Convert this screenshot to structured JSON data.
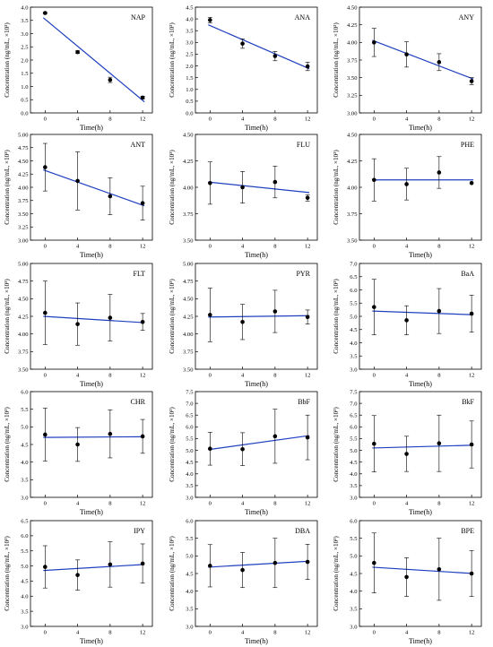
{
  "chart_data": [
    {
      "type": "scatter",
      "label": "NAP",
      "xlabel": "Time(h)",
      "ylabel": "Concentration (ng/mL, ×10³)",
      "x": [
        0,
        4,
        8,
        12
      ],
      "values": [
        3.78,
        2.3,
        1.25,
        0.58
      ],
      "errors": [
        0.03,
        0.05,
        0.1,
        0.05
      ],
      "fit": [
        3.6,
        0.42
      ],
      "ylim": [
        0,
        4
      ],
      "yticks": [
        "0.0",
        "0.5",
        "1.0",
        "1.5",
        "2.0",
        "2.5",
        "3.0",
        "3.5",
        "4.0"
      ],
      "xticks": [
        "0",
        "4",
        "8",
        "12"
      ]
    },
    {
      "type": "scatter",
      "label": "ANA",
      "xlabel": "Time(h)",
      "ylabel": "Concentration (ng/mL, ×10³)",
      "x": [
        0,
        4,
        8,
        12
      ],
      "values": [
        3.95,
        2.95,
        2.42,
        1.98
      ],
      "errors": [
        0.12,
        0.2,
        0.2,
        0.18
      ],
      "fit": [
        3.75,
        1.88
      ],
      "ylim": [
        0,
        4.5
      ],
      "yticks": [
        "0.0",
        "0.5",
        "1.0",
        "1.5",
        "2.0",
        "2.5",
        "3.0",
        "3.5",
        "4.0",
        "4.5"
      ],
      "xticks": [
        "0",
        "4",
        "8",
        "12"
      ]
    },
    {
      "type": "scatter",
      "label": "ANY",
      "xlabel": "Time(h)",
      "ylabel": "Concentration (ng/mL, ×10³)",
      "x": [
        0,
        4,
        8,
        12
      ],
      "values": [
        4.0,
        3.83,
        3.72,
        3.45
      ],
      "errors": [
        0.2,
        0.18,
        0.12,
        0.05
      ],
      "fit": [
        4.03,
        3.48
      ],
      "ylim": [
        3,
        4.5
      ],
      "yticks": [
        "3.00",
        "3.25",
        "3.50",
        "3.75",
        "4.00",
        "4.25",
        "4.50"
      ],
      "xticks": [
        "0",
        "4",
        "8",
        "12"
      ]
    },
    {
      "type": "scatter",
      "label": "ANT",
      "xlabel": "Time(h)",
      "ylabel": "Concentration (ng/mL, ×10³)",
      "x": [
        0,
        4,
        8,
        12
      ],
      "values": [
        4.38,
        4.12,
        3.83,
        3.7
      ],
      "errors": [
        0.45,
        0.55,
        0.35,
        0.32
      ],
      "fit": [
        4.33,
        3.65
      ],
      "ylim": [
        3,
        5
      ],
      "yticks": [
        "3.00",
        "3.25",
        "3.50",
        "3.75",
        "4.00",
        "4.25",
        "4.50",
        "4.75",
        "5.00"
      ],
      "xticks": [
        "0",
        "4",
        "8",
        "12"
      ]
    },
    {
      "type": "scatter",
      "label": "FLU",
      "xlabel": "Time(h)",
      "ylabel": "Concentration (ng/mL, ×10³)",
      "x": [
        0,
        4,
        8,
        12
      ],
      "values": [
        4.04,
        4.0,
        4.05,
        3.9
      ],
      "errors": [
        0.2,
        0.15,
        0.15,
        0.03
      ],
      "fit": [
        4.05,
        3.95
      ],
      "ylim": [
        3.5,
        4.5
      ],
      "yticks": [
        "3.50",
        "3.75",
        "4.00",
        "4.25",
        "4.50"
      ],
      "xticks": [
        "0",
        "4",
        "8",
        "12"
      ]
    },
    {
      "type": "scatter",
      "label": "PHE",
      "xlabel": "Time(h)",
      "ylabel": "Concentration (ng/mL, ×10³)",
      "x": [
        0,
        4,
        8,
        12
      ],
      "values": [
        4.07,
        4.03,
        4.14,
        4.04
      ],
      "errors": [
        0.2,
        0.15,
        0.15,
        0.0
      ],
      "fit": [
        4.07,
        4.07
      ],
      "ylim": [
        3.5,
        4.5
      ],
      "yticks": [
        "3.50",
        "3.75",
        "4.00",
        "4.25",
        "4.50"
      ],
      "xticks": [
        "0",
        "4",
        "8",
        "12"
      ]
    },
    {
      "type": "scatter",
      "label": "FLT",
      "xlabel": "Time(h)",
      "ylabel": "Concentration (ng/mL, ×10³)",
      "x": [
        0,
        4,
        8,
        12
      ],
      "values": [
        4.3,
        4.14,
        4.23,
        4.17
      ],
      "errors": [
        0.45,
        0.3,
        0.33,
        0.12
      ],
      "fit": [
        4.25,
        4.16
      ],
      "ylim": [
        3.5,
        5
      ],
      "yticks": [
        "3.50",
        "3.75",
        "4.00",
        "4.25",
        "4.50",
        "4.75",
        "5.00"
      ],
      "xticks": [
        "0",
        "4",
        "8",
        "12"
      ]
    },
    {
      "type": "scatter",
      "label": "PYR",
      "xlabel": "Time(h)",
      "ylabel": "Concentration (ng/mL, ×10³)",
      "x": [
        0,
        4,
        8,
        12
      ],
      "values": [
        4.27,
        4.17,
        4.32,
        4.24
      ],
      "errors": [
        0.38,
        0.25,
        0.3,
        0.1
      ],
      "fit": [
        4.24,
        4.26
      ],
      "ylim": [
        3.5,
        5
      ],
      "yticks": [
        "3.50",
        "3.75",
        "4.00",
        "4.25",
        "4.50",
        "4.75",
        "5.00"
      ],
      "xticks": [
        "0",
        "4",
        "8",
        "12"
      ]
    },
    {
      "type": "scatter",
      "label": "BaA",
      "xlabel": "Time(h)",
      "ylabel": "Concentration (ng/mL, ×10³)",
      "x": [
        0,
        4,
        8,
        12
      ],
      "values": [
        5.35,
        4.85,
        5.2,
        5.1
      ],
      "errors": [
        1.05,
        0.55,
        0.85,
        0.7
      ],
      "fit": [
        5.2,
        5.06
      ],
      "ylim": [
        3,
        7
      ],
      "yticks": [
        "3.0",
        "3.5",
        "4.0",
        "4.5",
        "5.0",
        "5.5",
        "6.0",
        "6.5",
        "7.0"
      ],
      "xticks": [
        "0",
        "4",
        "8",
        "12"
      ]
    },
    {
      "type": "scatter",
      "label": "CHR",
      "xlabel": "Time(h)",
      "ylabel": "Concentration (ng/mL, ×10³)",
      "x": [
        0,
        4,
        8,
        12
      ],
      "values": [
        4.78,
        4.5,
        4.8,
        4.73
      ],
      "errors": [
        0.75,
        0.48,
        0.68,
        0.48
      ],
      "fit": [
        4.7,
        4.72
      ],
      "ylim": [
        3,
        6
      ],
      "yticks": [
        "3.0",
        "3.5",
        "4.0",
        "4.5",
        "5.0",
        "5.5",
        "6.0"
      ],
      "xticks": [
        "0",
        "4",
        "8",
        "12"
      ]
    },
    {
      "type": "scatter",
      "label": "BbF",
      "xlabel": "Time(h)",
      "ylabel": "Concentration (ng/mL, ×10³)",
      "x": [
        0,
        4,
        8,
        12
      ],
      "values": [
        5.07,
        5.05,
        5.6,
        5.55
      ],
      "errors": [
        0.7,
        0.7,
        1.15,
        0.95
      ],
      "fit": [
        5.03,
        5.63
      ],
      "ylim": [
        3,
        7.5
      ],
      "yticks": [
        "3.0",
        "3.5",
        "4.0",
        "4.5",
        "5.0",
        "5.5",
        "6.0",
        "6.5",
        "7.0",
        "7.5"
      ],
      "xticks": [
        "0",
        "4",
        "8",
        "12"
      ]
    },
    {
      "type": "scatter",
      "label": "BkF",
      "xlabel": "Time(h)",
      "ylabel": "Concentration (ng/mL, ×10³)",
      "x": [
        0,
        4,
        8,
        12
      ],
      "values": [
        5.28,
        4.85,
        5.3,
        5.25
      ],
      "errors": [
        1.2,
        0.75,
        1.2,
        1.0
      ],
      "fit": [
        5.1,
        5.22
      ],
      "ylim": [
        3,
        7.5
      ],
      "yticks": [
        "3.0",
        "3.5",
        "4.0",
        "4.5",
        "5.0",
        "5.5",
        "6.0",
        "6.5",
        "7.0",
        "7.5"
      ],
      "xticks": [
        "0",
        "4",
        "8",
        "12"
      ]
    },
    {
      "type": "scatter",
      "label": "IPY",
      "xlabel": "Time(h)",
      "ylabel": "Concentration (ng/mL, ×10³)",
      "x": [
        0,
        4,
        8,
        12
      ],
      "values": [
        4.97,
        4.7,
        5.05,
        5.08
      ],
      "errors": [
        0.7,
        0.5,
        0.75,
        0.65
      ],
      "fit": [
        4.85,
        5.05
      ],
      "ylim": [
        3,
        6.5
      ],
      "yticks": [
        "3.0",
        "3.5",
        "4.0",
        "4.5",
        "5.0",
        "5.5",
        "6.0",
        "6.5"
      ],
      "xticks": [
        "0",
        "4",
        "8",
        "12"
      ]
    },
    {
      "type": "scatter",
      "label": "DBA",
      "xlabel": "Time(h)",
      "ylabel": "Concentration (ng/mL, ×10³)",
      "x": [
        0,
        4,
        8,
        12
      ],
      "values": [
        4.72,
        4.6,
        4.8,
        4.83
      ],
      "errors": [
        0.6,
        0.5,
        0.7,
        0.5
      ],
      "fit": [
        4.68,
        4.85
      ],
      "ylim": [
        3,
        6
      ],
      "yticks": [
        "3.0",
        "3.5",
        "4.0",
        "4.5",
        "5.0",
        "5.5",
        "6.0"
      ],
      "xticks": [
        "0",
        "4",
        "8",
        "12"
      ]
    },
    {
      "type": "scatter",
      "label": "BPE",
      "xlabel": "Time(h)",
      "ylabel": "Concentration (ng/mL, ×10³)",
      "x": [
        0,
        4,
        8,
        12
      ],
      "values": [
        4.8,
        4.4,
        4.62,
        4.5
      ],
      "errors": [
        0.85,
        0.55,
        0.88,
        0.65
      ],
      "fit": [
        4.68,
        4.5
      ],
      "ylim": [
        3,
        6
      ],
      "yticks": [
        "3.0",
        "3.5",
        "4.0",
        "4.5",
        "5.0",
        "5.5",
        "6.0"
      ],
      "xticks": [
        "0",
        "4",
        "8",
        "12"
      ]
    }
  ],
  "colors": {
    "fit_line": "#1f3fbf",
    "marker": "#000000",
    "axis": "#000000"
  }
}
